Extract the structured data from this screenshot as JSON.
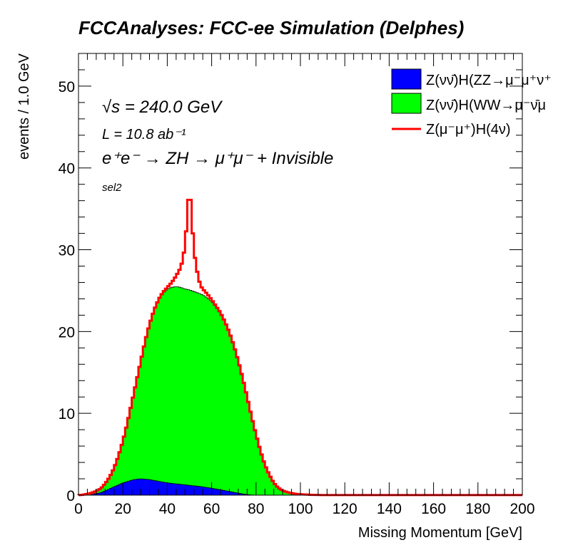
{
  "chart_data": {
    "type": "area",
    "title": "FCCAnalyses: FCC-ee Simulation (Delphes)",
    "xlabel": "Missing Momentum [GeV]",
    "ylabel": "events / 1.0 GeV",
    "xlim": [
      0,
      200
    ],
    "ylim": [
      0,
      54
    ],
    "xticks": [
      0,
      20,
      40,
      60,
      80,
      100,
      120,
      140,
      160,
      180,
      200
    ],
    "yticks": [
      0,
      10,
      20,
      30,
      40,
      50
    ],
    "grid": false,
    "legend_position": "top-right",
    "annotations": {
      "sqrt_s": "√s = 240.0 GeV",
      "lumi": "L = 10.8 ab⁻¹",
      "process": "e⁺e⁻ → ZH → μ⁺μ⁻ + Invisible",
      "selection": "sel2"
    },
    "bin_width": 1.0,
    "series": [
      {
        "name": "Z(νν̄)H(ZZ→μ⁻μ⁺ν⁺",
        "style": "filled",
        "color": "#0000ff",
        "points": [
          [
            0,
            0
          ],
          [
            5,
            0.05
          ],
          [
            10,
            0.3
          ],
          [
            15,
            0.9
          ],
          [
            20,
            1.5
          ],
          [
            25,
            1.9
          ],
          [
            28,
            2.0
          ],
          [
            32,
            1.9
          ],
          [
            36,
            1.7
          ],
          [
            40,
            1.5
          ],
          [
            45,
            1.35
          ],
          [
            50,
            1.2
          ],
          [
            55,
            1.05
          ],
          [
            60,
            0.85
          ],
          [
            65,
            0.6
          ],
          [
            70,
            0.35
          ],
          [
            75,
            0.1
          ],
          [
            78,
            0.02
          ],
          [
            80,
            0
          ]
        ]
      },
      {
        "name": "Z(νν̄)H(WW→μ⁻ν̄μ",
        "style": "filled",
        "color": "#00ff00",
        "points": [
          [
            0,
            0
          ],
          [
            2,
            0.05
          ],
          [
            5,
            0.2
          ],
          [
            8,
            0.5
          ],
          [
            10,
            0.8
          ],
          [
            12,
            1.4
          ],
          [
            14,
            2.2
          ],
          [
            16,
            3.3
          ],
          [
            18,
            4.8
          ],
          [
            20,
            6.6
          ],
          [
            22,
            8.8
          ],
          [
            24,
            11.3
          ],
          [
            26,
            13.8
          ],
          [
            28,
            16.3
          ],
          [
            30,
            18.8
          ],
          [
            32,
            20.9
          ],
          [
            34,
            22.6
          ],
          [
            36,
            23.8
          ],
          [
            38,
            24.7
          ],
          [
            40,
            25.2
          ],
          [
            42,
            25.4
          ],
          [
            44,
            25.5
          ],
          [
            46,
            25.4
          ],
          [
            48,
            25.2
          ],
          [
            50,
            25.1
          ],
          [
            52,
            24.9
          ],
          [
            54,
            24.7
          ],
          [
            56,
            24.5
          ],
          [
            58,
            24.1
          ],
          [
            60,
            23.7
          ],
          [
            62,
            23.0
          ],
          [
            64,
            22.2
          ],
          [
            66,
            21.1
          ],
          [
            68,
            19.8
          ],
          [
            70,
            18.2
          ],
          [
            72,
            16.3
          ],
          [
            74,
            14.2
          ],
          [
            76,
            11.9
          ],
          [
            78,
            9.5
          ],
          [
            80,
            7.3
          ],
          [
            82,
            5.3
          ],
          [
            84,
            3.6
          ],
          [
            86,
            2.4
          ],
          [
            88,
            1.4
          ],
          [
            90,
            0.8
          ],
          [
            92,
            0.5
          ],
          [
            95,
            0.3
          ],
          [
            98,
            0.15
          ],
          [
            102,
            0.08
          ],
          [
            106,
            0.02
          ],
          [
            108,
            0
          ]
        ]
      },
      {
        "name": "Z(μ⁻μ⁺)H(4ν)",
        "style": "line",
        "color": "#ff0000",
        "points": [
          [
            0,
            0
          ],
          [
            2,
            0.05
          ],
          [
            5,
            0.2
          ],
          [
            8,
            0.5
          ],
          [
            10,
            0.8
          ],
          [
            12,
            1.4
          ],
          [
            14,
            2.2
          ],
          [
            16,
            3.3
          ],
          [
            18,
            4.8
          ],
          [
            20,
            6.6
          ],
          [
            22,
            8.8
          ],
          [
            24,
            11.3
          ],
          [
            26,
            13.8
          ],
          [
            28,
            16.3
          ],
          [
            30,
            18.8
          ],
          [
            32,
            20.9
          ],
          [
            34,
            22.6
          ],
          [
            36,
            23.9
          ],
          [
            38,
            24.8
          ],
          [
            40,
            25.4
          ],
          [
            42,
            26.0
          ],
          [
            44,
            26.8
          ],
          [
            46,
            27.8
          ],
          [
            47,
            28.8
          ],
          [
            48,
            30.5
          ],
          [
            49,
            34.0
          ],
          [
            50,
            38.2
          ],
          [
            51,
            34.0
          ],
          [
            52,
            30.0
          ],
          [
            53,
            28.0
          ],
          [
            54,
            26.6
          ],
          [
            55,
            25.6
          ],
          [
            56,
            25.2
          ],
          [
            58,
            24.6
          ],
          [
            60,
            23.9
          ],
          [
            62,
            23.1
          ],
          [
            64,
            22.3
          ],
          [
            66,
            21.2
          ],
          [
            68,
            19.9
          ],
          [
            70,
            18.3
          ],
          [
            72,
            16.4
          ],
          [
            74,
            14.3
          ],
          [
            76,
            12.0
          ],
          [
            78,
            9.6
          ],
          [
            80,
            7.4
          ],
          [
            82,
            5.4
          ],
          [
            84,
            3.7
          ],
          [
            86,
            2.5
          ],
          [
            88,
            1.5
          ],
          [
            90,
            0.9
          ],
          [
            92,
            0.55
          ],
          [
            95,
            0.3
          ],
          [
            98,
            0.15
          ],
          [
            102,
            0.08
          ],
          [
            106,
            0.03
          ],
          [
            110,
            0.01
          ],
          [
            200,
            0.01
          ]
        ]
      }
    ]
  }
}
